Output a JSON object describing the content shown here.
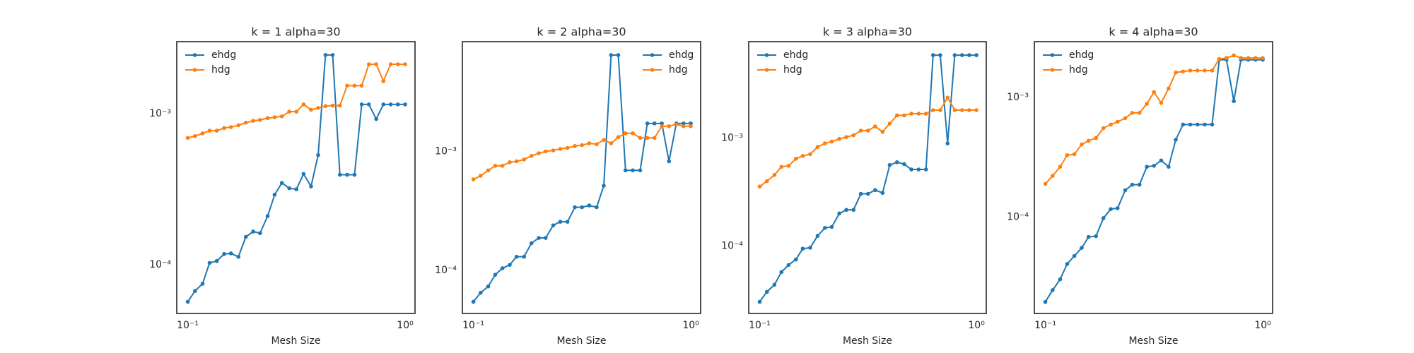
{
  "chart_data": [
    {
      "type": "line",
      "title": "k = 1 alpha=30",
      "xlabel": "Mesh Size",
      "log_x": true,
      "log_y": true,
      "legend": "upper left",
      "x": [
        0.1,
        0.108,
        0.117,
        0.126,
        0.136,
        0.147,
        0.158,
        0.171,
        0.185,
        0.2,
        0.215,
        0.233,
        0.251,
        0.271,
        0.293,
        0.316,
        0.341,
        0.369,
        0.398,
        0.43,
        0.464,
        0.501,
        0.541,
        0.585,
        0.631,
        0.681,
        0.736,
        0.794,
        0.858,
        0.926,
        1.0
      ],
      "xlim": [
        0.089,
        1.11
      ],
      "xticks": [
        {
          "value": 0.1,
          "label": "10⁻¹"
        },
        {
          "value": 1,
          "label": "10⁰"
        }
      ],
      "ylim": [
        4.77e-05,
        0.00299
      ],
      "yticks": [
        {
          "value": 0.0001,
          "label": "10⁻⁴"
        },
        {
          "value": 0.001,
          "label": "10⁻³"
        }
      ],
      "series": [
        {
          "name": "ehdg",
          "color": "#1f77b4",
          "values": [
            5.7e-05,
            6.72e-05,
            7.5e-05,
            0.000103,
            0.000106,
            0.000118,
            0.000119,
            0.000113,
            0.000153,
            0.000166,
            0.000162,
            0.00021,
            0.000291,
            0.000348,
            0.000321,
            0.000316,
            0.000399,
            0.00033,
            0.000532,
            0.00244,
            0.00244,
            0.000394,
            0.000394,
            0.000394,
            0.00115,
            0.00115,
            0.000921,
            0.00115,
            0.00115,
            0.00115,
            0.00115
          ]
        },
        {
          "name": "hdg",
          "color": "#ff7f0e",
          "values": [
            0.000691,
            0.00071,
            0.00074,
            0.000771,
            0.000771,
            0.000803,
            0.000814,
            0.000837,
            0.000871,
            0.000896,
            0.000908,
            0.000933,
            0.000946,
            0.000959,
            0.00103,
            0.00103,
            0.00115,
            0.00106,
            0.00109,
            0.00112,
            0.00113,
            0.00113,
            0.00153,
            0.00153,
            0.00153,
            0.00212,
            0.00212,
            0.00164,
            0.00212,
            0.00212,
            0.00212
          ]
        }
      ]
    },
    {
      "type": "line",
      "title": "k = 2 alpha=30",
      "xlabel": "Mesh Size",
      "log_x": true,
      "log_y": true,
      "legend": "upper right",
      "x": [
        0.1,
        0.108,
        0.117,
        0.126,
        0.136,
        0.147,
        0.158,
        0.171,
        0.185,
        0.2,
        0.215,
        0.233,
        0.251,
        0.271,
        0.293,
        0.316,
        0.341,
        0.369,
        0.398,
        0.43,
        0.464,
        0.501,
        0.541,
        0.585,
        0.631,
        0.681,
        0.736,
        0.794,
        0.858,
        0.926,
        1.0
      ],
      "xlim": [
        0.089,
        1.11
      ],
      "xticks": [
        {
          "value": 0.1,
          "label": "10⁻¹"
        },
        {
          "value": 1,
          "label": "10⁰"
        }
      ],
      "ylim": [
        4.33e-05,
        0.00839
      ],
      "yticks": [
        {
          "value": 0.0001,
          "label": "10⁻⁴"
        },
        {
          "value": 0.001,
          "label": "10⁻³"
        }
      ],
      "series": [
        {
          "name": "ehdg",
          "color": "#1f77b4",
          "values": [
            5.43e-05,
            6.47e-05,
            7.31e-05,
            9.17e-05,
            0.000104,
            0.000111,
            0.00013,
            0.00013,
            0.000169,
            0.000187,
            0.000187,
            0.000239,
            0.000256,
            0.000256,
            0.000339,
            0.000339,
            0.000351,
            0.000339,
            0.000515,
            0.00647,
            0.00647,
            0.000693,
            0.000693,
            0.000693,
            0.00172,
            0.00172,
            0.00172,
            0.000826,
            0.00172,
            0.00172,
            0.00172
          ]
        },
        {
          "name": "hdg",
          "color": "#ff7f0e",
          "values": [
            0.000582,
            0.000624,
            0.000693,
            0.000757,
            0.000757,
            0.000811,
            0.000826,
            0.000855,
            0.000917,
            0.000966,
            0.001,
            0.00102,
            0.00105,
            0.00107,
            0.00111,
            0.00113,
            0.00117,
            0.00115,
            0.00125,
            0.00117,
            0.00132,
            0.00142,
            0.00142,
            0.0013,
            0.0013,
            0.0013,
            0.00163,
            0.00163,
            0.00169,
            0.00163,
            0.00163
          ]
        }
      ]
    },
    {
      "type": "line",
      "title": "k = 3 alpha=30",
      "xlabel": "Mesh Size",
      "log_x": true,
      "log_y": true,
      "legend": "upper left",
      "x": [
        0.1,
        0.108,
        0.117,
        0.126,
        0.136,
        0.147,
        0.158,
        0.171,
        0.185,
        0.2,
        0.215,
        0.233,
        0.251,
        0.271,
        0.293,
        0.316,
        0.341,
        0.369,
        0.398,
        0.43,
        0.464,
        0.501,
        0.541,
        0.585,
        0.631,
        0.681,
        0.736,
        0.794,
        0.858,
        0.926,
        1.0
      ],
      "xlim": [
        0.089,
        1.11
      ],
      "xticks": [
        {
          "value": 0.1,
          "label": "10⁻¹"
        },
        {
          "value": 1,
          "label": "10⁰"
        }
      ],
      "ylim": [
        2.37e-05,
        0.0078
      ],
      "yticks": [
        {
          "value": 0.0001,
          "label": "10⁻⁴"
        },
        {
          "value": 0.001,
          "label": "10⁻³"
        }
      ],
      "series": [
        {
          "name": "ehdg",
          "color": "#1f77b4",
          "values": [
            3.04e-05,
            3.76e-05,
            4.38e-05,
            5.73e-05,
            6.68e-05,
            7.5e-05,
            9.44e-05,
            9.62e-05,
            0.000124,
            0.000147,
            0.00015,
            0.0002,
            0.000216,
            0.000216,
            0.000304,
            0.000304,
            0.000329,
            0.00031,
            0.000562,
            0.000596,
            0.000573,
            0.000511,
            0.000511,
            0.000511,
            0.00585,
            0.00585,
            0.000891,
            0.00585,
            0.00585,
            0.00585,
            0.00585
          ]
        },
        {
          "name": "hdg",
          "color": "#ff7f0e",
          "values": [
            0.000355,
            0.000398,
            0.000455,
            0.000541,
            0.000552,
            0.000643,
            0.000681,
            0.000708,
            0.000826,
            0.000891,
            0.000926,
            0.000981,
            0.00102,
            0.00106,
            0.00117,
            0.00117,
            0.00128,
            0.00114,
            0.00136,
            0.00162,
            0.00162,
            0.00168,
            0.00168,
            0.00168,
            0.00181,
            0.00181,
            0.00237,
            0.00181,
            0.00181,
            0.00181,
            0.00181
          ]
        }
      ]
    },
    {
      "type": "line",
      "title": "k = 4 alpha=30",
      "xlabel": "Mesh Size",
      "log_x": true,
      "log_y": true,
      "legend": "upper left",
      "x": [
        0.1,
        0.108,
        0.117,
        0.126,
        0.136,
        0.147,
        0.158,
        0.171,
        0.185,
        0.2,
        0.215,
        0.233,
        0.251,
        0.271,
        0.293,
        0.316,
        0.341,
        0.369,
        0.398,
        0.43,
        0.464,
        0.501,
        0.541,
        0.585,
        0.631,
        0.681,
        0.736,
        0.794,
        0.858,
        0.926,
        1.0
      ],
      "xlim": [
        0.089,
        1.11
      ],
      "xticks": [
        {
          "value": 0.1,
          "label": "10⁻¹"
        },
        {
          "value": 1,
          "label": "10⁰"
        }
      ],
      "ylim": [
        1.57e-05,
        0.00293
      ],
      "yticks": [
        {
          "value": 0.0001,
          "label": "10⁻⁴"
        },
        {
          "value": 0.001,
          "label": "10⁻³"
        }
      ],
      "series": [
        {
          "name": "ehdg",
          "color": "#1f77b4",
          "values": [
            1.96e-05,
            2.46e-05,
            3.03e-05,
            4.07e-05,
            4.75e-05,
            5.55e-05,
            6.84e-05,
            6.95e-05,
            9.83e-05,
            0.000117,
            0.000119,
            0.000168,
            0.000187,
            0.000187,
            0.000264,
            0.000269,
            0.000298,
            0.000264,
            0.000444,
            0.000595,
            0.000595,
            0.000595,
            0.000595,
            0.000595,
            0.00207,
            0.00207,
            0.000933,
            0.00207,
            0.00207,
            0.00207,
            0.00207
          ]
        },
        {
          "name": "hdg",
          "color": "#ff7f0e",
          "values": [
            0.00019,
            0.000222,
            0.000264,
            0.00033,
            0.000336,
            0.000406,
            0.000435,
            0.000459,
            0.000555,
            0.000595,
            0.000627,
            0.000672,
            0.000745,
            0.000745,
            0.000886,
            0.00111,
            0.000902,
            0.00119,
            0.00162,
            0.00165,
            0.00168,
            0.00168,
            0.00168,
            0.00168,
            0.0021,
            0.00214,
            0.00225,
            0.00214,
            0.00214,
            0.00214,
            0.00214
          ]
        }
      ]
    }
  ]
}
